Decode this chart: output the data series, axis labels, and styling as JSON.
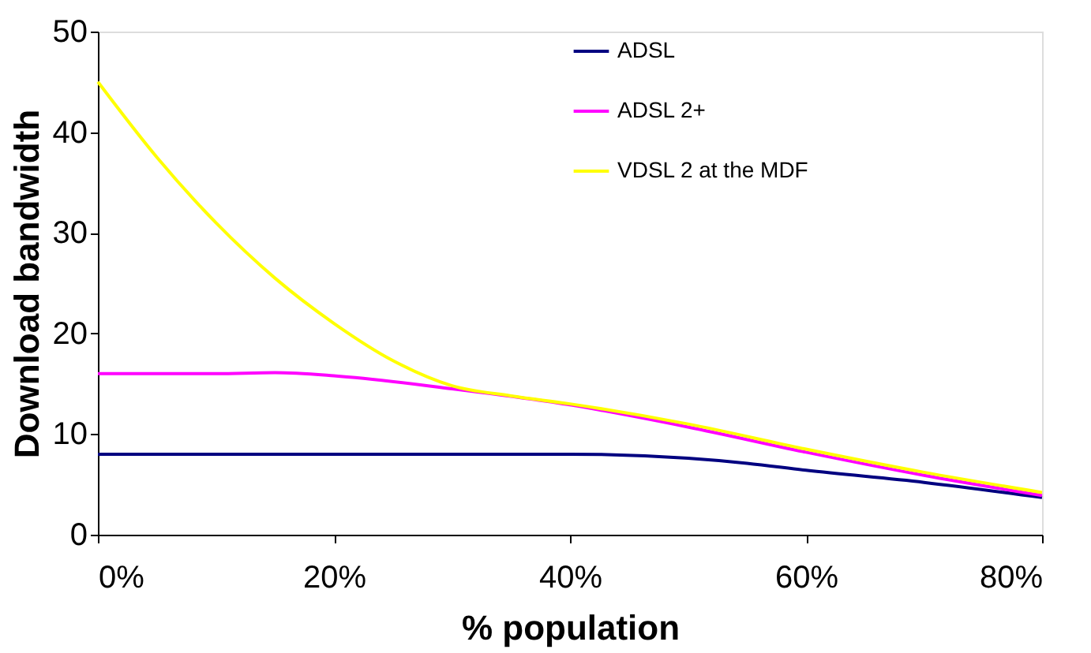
{
  "chart_data": {
    "type": "line",
    "xlabel": "% population",
    "ylabel": "Download bandwidth",
    "xlim": [
      0,
      80
    ],
    "xticks": [
      {
        "value": 0,
        "label": "0%"
      },
      {
        "value": 20,
        "label": "20%"
      },
      {
        "value": 40,
        "label": "40%"
      },
      {
        "value": 60,
        "label": "60%"
      },
      {
        "value": 80,
        "label": "80%"
      }
    ],
    "ylim": [
      0,
      50
    ],
    "yticks": [
      0,
      10,
      20,
      30,
      40,
      50
    ],
    "grid": false,
    "legend": "top right",
    "marker": "none",
    "line_style": "solid",
    "series": [
      {
        "name": "ADSL",
        "color": "#000080",
        "x": [
          0,
          20,
          40,
          50,
          55,
          60,
          70,
          80
        ],
        "values": [
          8,
          8,
          8,
          7.6,
          7.1,
          6.4,
          5.2,
          3.7
        ]
      },
      {
        "name": "ADSL 2+",
        "color": "#ff00ff",
        "x": [
          0,
          10,
          15,
          20,
          30,
          40,
          50,
          60,
          70,
          80
        ],
        "values": [
          16,
          16,
          16.1,
          15.8,
          14.5,
          12.9,
          10.7,
          8.2,
          5.9,
          3.9
        ]
      },
      {
        "name": "VDSL 2 at the MDF",
        "color": "#ffff00",
        "x": [
          0,
          5,
          10,
          15,
          20,
          25,
          30,
          35,
          40,
          50,
          60,
          70,
          80
        ],
        "values": [
          45,
          37.5,
          31,
          25.5,
          21,
          17.3,
          14.8,
          13.8,
          13,
          11,
          8.5,
          6.2,
          4.2
        ]
      }
    ]
  }
}
